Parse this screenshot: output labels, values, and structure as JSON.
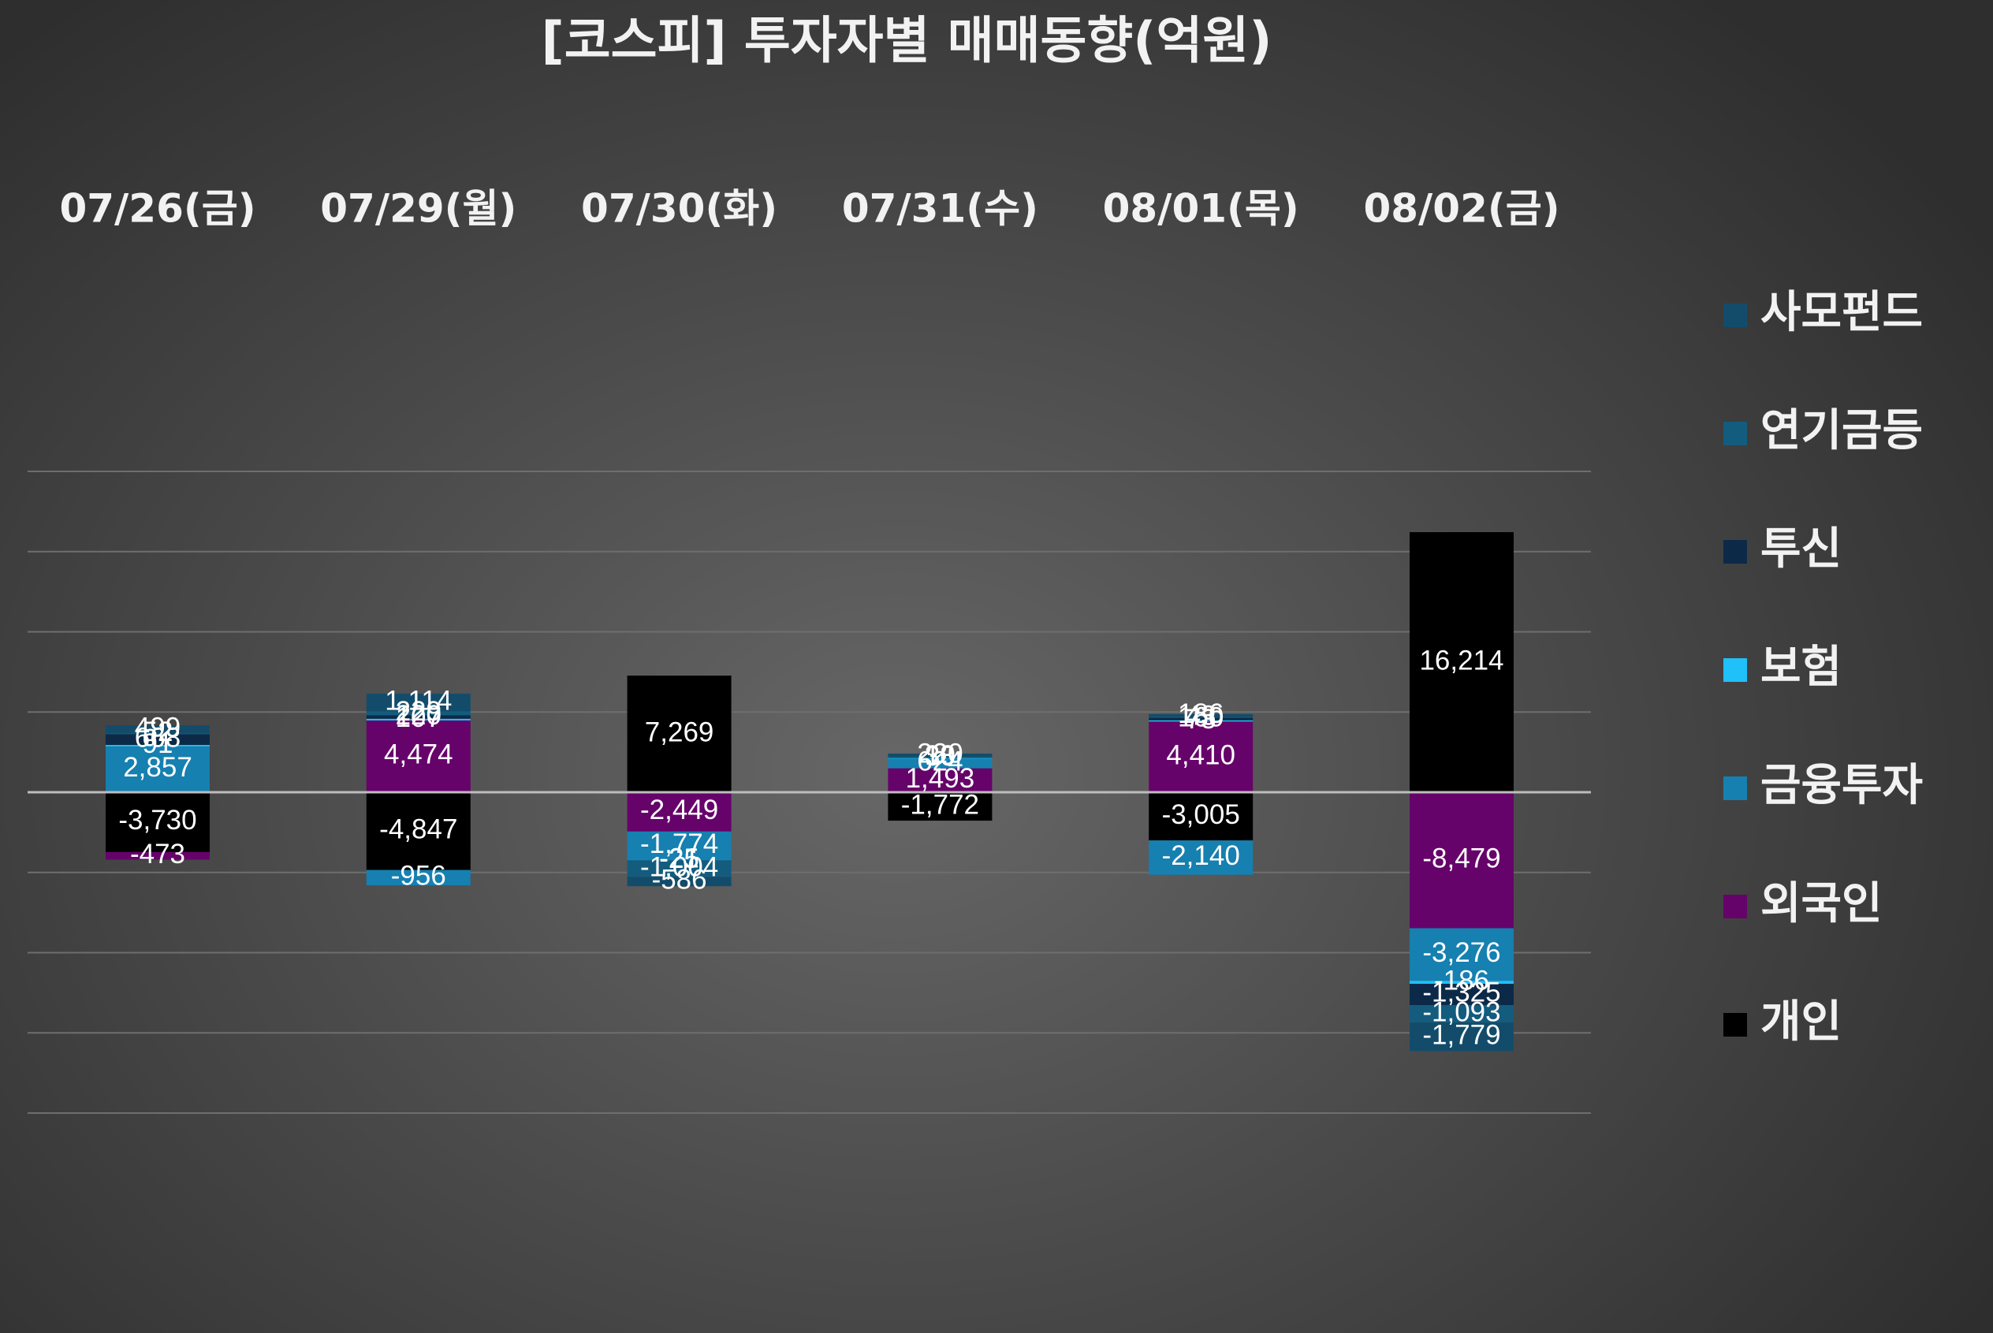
{
  "chart_data": {
    "type": "bar",
    "stacked": true,
    "title": "[코스피] 투자자별 매매동향(억원)",
    "categories": [
      "07/26(금)",
      "07/29(월)",
      "07/30(화)",
      "07/31(수)",
      "08/01(목)",
      "08/02(금)"
    ],
    "series": [
      {
        "name": "개인",
        "color": "#000000",
        "values": [
          -3730,
          -4847,
          7269,
          -1772,
          -3005,
          16214
        ]
      },
      {
        "name": "외국인",
        "color": "#66036a",
        "values": [
          -473,
          4474,
          -2449,
          1493,
          4410,
          -8479
        ]
      },
      {
        "name": "금융투자",
        "color": "#1680b0",
        "values": [
          2857,
          -956,
          -1774,
          624,
          -2140,
          -3276
        ]
      },
      {
        "name": "보험",
        "color": "#20c0f8",
        "values": [
          91,
          107,
          -21,
          30,
          73,
          -186
        ]
      },
      {
        "name": "투신",
        "color": "#0c2a48",
        "values": [
          668,
          220,
          -25,
          33,
          160,
          -1325
        ]
      },
      {
        "name": "연기금등",
        "color": "#135c7e",
        "values": [
          52,
          229,
          -1004,
          10,
          43,
          -1093
        ]
      },
      {
        "name": "사모펀드",
        "color": "#134c6a",
        "values": [
          499,
          1114,
          -586,
          220,
          186,
          -1779
        ]
      }
    ],
    "ylim": [
      -20000,
      20000
    ],
    "grid": true,
    "legend": "right"
  }
}
